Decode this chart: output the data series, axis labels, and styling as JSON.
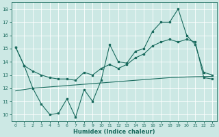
{
  "xlabel": "Humidex (Indice chaleur)",
  "bg_color": "#cce8e4",
  "grid_color": "#ffffff",
  "line_color": "#1a6b5e",
  "xlim": [
    -0.5,
    23.5
  ],
  "ylim": [
    9.5,
    18.5
  ],
  "yticks": [
    10,
    11,
    12,
    13,
    14,
    15,
    16,
    17,
    18
  ],
  "xticks": [
    0,
    1,
    2,
    3,
    4,
    5,
    6,
    7,
    8,
    9,
    10,
    11,
    12,
    13,
    14,
    15,
    16,
    17,
    18,
    19,
    20,
    21,
    22,
    23
  ],
  "line1_x": [
    0,
    1,
    2,
    3,
    4,
    5,
    6,
    7,
    8,
    9,
    10,
    11,
    12,
    13,
    14,
    15,
    16,
    17,
    18,
    19,
    20,
    21,
    22,
    23
  ],
  "line1_y": [
    15.1,
    13.7,
    12.0,
    10.8,
    10.0,
    10.1,
    11.2,
    9.8,
    11.9,
    11.0,
    12.6,
    15.3,
    14.0,
    13.9,
    14.8,
    15.0,
    16.3,
    17.0,
    17.0,
    18.0,
    16.0,
    15.3,
    13.2,
    13.0
  ],
  "line2_x": [
    0,
    1,
    2,
    3,
    4,
    5,
    6,
    7,
    8,
    9,
    10,
    11,
    12,
    13,
    14,
    15,
    16,
    17,
    18,
    19,
    20,
    21,
    22,
    23
  ],
  "line2_y": [
    15.1,
    13.7,
    13.3,
    13.0,
    12.8,
    12.7,
    12.7,
    12.6,
    13.2,
    13.0,
    13.5,
    13.8,
    13.5,
    13.8,
    14.3,
    14.6,
    15.2,
    15.5,
    15.7,
    15.5,
    15.7,
    15.5,
    12.8,
    12.7
  ],
  "line3_x": [
    0,
    1,
    2,
    3,
    4,
    5,
    6,
    7,
    8,
    9,
    10,
    11,
    12,
    13,
    14,
    15,
    16,
    17,
    18,
    19,
    20,
    21,
    22,
    23
  ],
  "line3_y": [
    11.8,
    11.9,
    12.0,
    12.05,
    12.1,
    12.15,
    12.2,
    12.25,
    12.3,
    12.35,
    12.4,
    12.45,
    12.5,
    12.55,
    12.6,
    12.65,
    12.7,
    12.75,
    12.8,
    12.82,
    12.85,
    12.87,
    12.88,
    12.9
  ],
  "figsize": [
    3.2,
    2.0
  ],
  "dpi": 100
}
